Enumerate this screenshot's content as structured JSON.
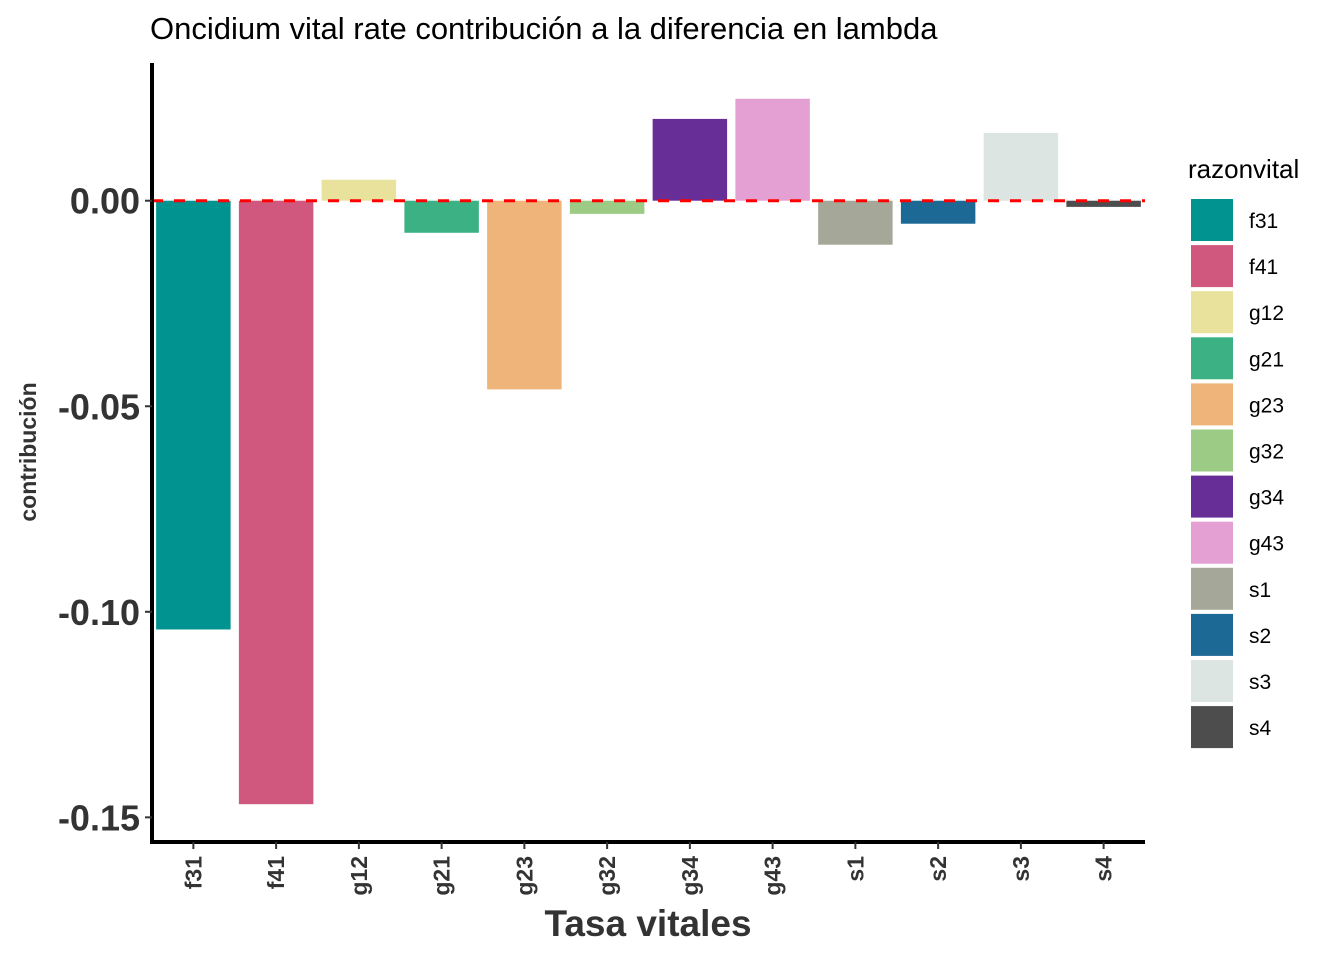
{
  "chart_data": {
    "type": "bar",
    "title": "Oncidium vital rate contribución a la diferencia en lambda",
    "xlabel": "Tasa vitales",
    "ylabel": "contribución",
    "categories": [
      "f31",
      "f41",
      "g12",
      "g21",
      "g23",
      "g32",
      "g34",
      "g43",
      "s1",
      "s2",
      "s3",
      "s4"
    ],
    "values": [
      -0.1043,
      -0.1468,
      0.0051,
      -0.0078,
      -0.0459,
      -0.0032,
      0.0199,
      0.0248,
      -0.0107,
      -0.0056,
      0.0165,
      -0.0015
    ],
    "colors": [
      "#009390",
      "#D0587E",
      "#E9E29C",
      "#3CB284",
      "#EEB479",
      "#9CCB86",
      "#672E98",
      "#E4A0D2",
      "#A5A898",
      "#1D6996",
      "#DCE5E2",
      "#4D4D4D"
    ],
    "ylim": [
      -0.156,
      0.0335
    ],
    "yticks": [
      0.0,
      -0.05,
      -0.1,
      -0.15
    ],
    "ytick_labels": [
      "0.00",
      "-0.05",
      "-0.10",
      "-0.15"
    ],
    "reference_line": {
      "y": 0,
      "style": "dashed",
      "color": "#FF0000"
    },
    "grid": false,
    "legend": {
      "title": "razonvital",
      "position": "right",
      "entries": [
        "f31",
        "f41",
        "g12",
        "g21",
        "g23",
        "g32",
        "g34",
        "g43",
        "s1",
        "s2",
        "s3",
        "s4"
      ]
    }
  }
}
